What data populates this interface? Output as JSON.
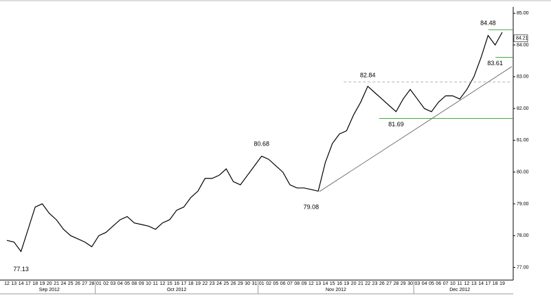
{
  "chart_data": {
    "type": "line",
    "color": "#000000",
    "categories": [
      "12",
      "13",
      "14",
      "17",
      "18",
      "19",
      "20",
      "21",
      "24",
      "25",
      "26",
      "27",
      "28",
      "01",
      "02",
      "03",
      "04",
      "05",
      "08",
      "09",
      "10",
      "11",
      "12",
      "15",
      "16",
      "17",
      "18",
      "19",
      "22",
      "23",
      "24",
      "25",
      "26",
      "29",
      "30",
      "31",
      "01",
      "02",
      "05",
      "06",
      "07",
      "08",
      "09",
      "12",
      "13",
      "14",
      "15",
      "16",
      "19",
      "20",
      "21",
      "22",
      "23",
      "26",
      "27",
      "28",
      "29",
      "30",
      "03",
      "04",
      "05",
      "06",
      "07",
      "10",
      "11",
      "12",
      "13",
      "14",
      "17",
      "18",
      "19"
    ],
    "values": [
      77.85,
      77.8,
      77.5,
      78.2,
      78.9,
      79.0,
      78.7,
      78.5,
      78.2,
      78.0,
      77.9,
      77.8,
      77.65,
      78.0,
      78.1,
      78.3,
      78.5,
      78.6,
      78.4,
      78.35,
      78.3,
      78.2,
      78.4,
      78.5,
      78.8,
      78.9,
      79.2,
      79.4,
      79.8,
      79.8,
      79.9,
      80.1,
      79.7,
      79.6,
      79.9,
      80.2,
      80.5,
      80.4,
      80.2,
      80.0,
      79.6,
      79.5,
      79.5,
      79.45,
      79.4,
      80.3,
      80.9,
      81.2,
      81.3,
      81.8,
      82.2,
      82.7,
      82.5,
      82.3,
      82.1,
      81.9,
      82.3,
      82.6,
      82.3,
      82.0,
      81.9,
      82.2,
      82.4,
      82.4,
      82.3,
      82.6,
      83.0,
      83.6,
      84.3,
      84.0,
      84.4
    ],
    "months": [
      "Sep 2012",
      "Oct 2012",
      "Nov 2012",
      "Dec 2012"
    ],
    "annotations": [
      77.13,
      80.68,
      79.08,
      82.84,
      81.69,
      84.48,
      83.61
    ],
    "last_price": 84.21,
    "ylim": [
      76.6,
      85.2
    ],
    "yticks": [
      {
        "value": 77,
        "label": "77.00"
      },
      {
        "value": 78,
        "label": "78.00"
      },
      {
        "value": 79,
        "label": "79.00"
      },
      {
        "value": 80,
        "label": "80.00"
      },
      {
        "value": 81,
        "label": "81.00"
      },
      {
        "value": 82,
        "label": "82.00"
      },
      {
        "value": 83,
        "label": "83.00"
      },
      {
        "value": 84,
        "label": "84.00"
      },
      {
        "value": 85,
        "label": "85.00"
      }
    ]
  }
}
